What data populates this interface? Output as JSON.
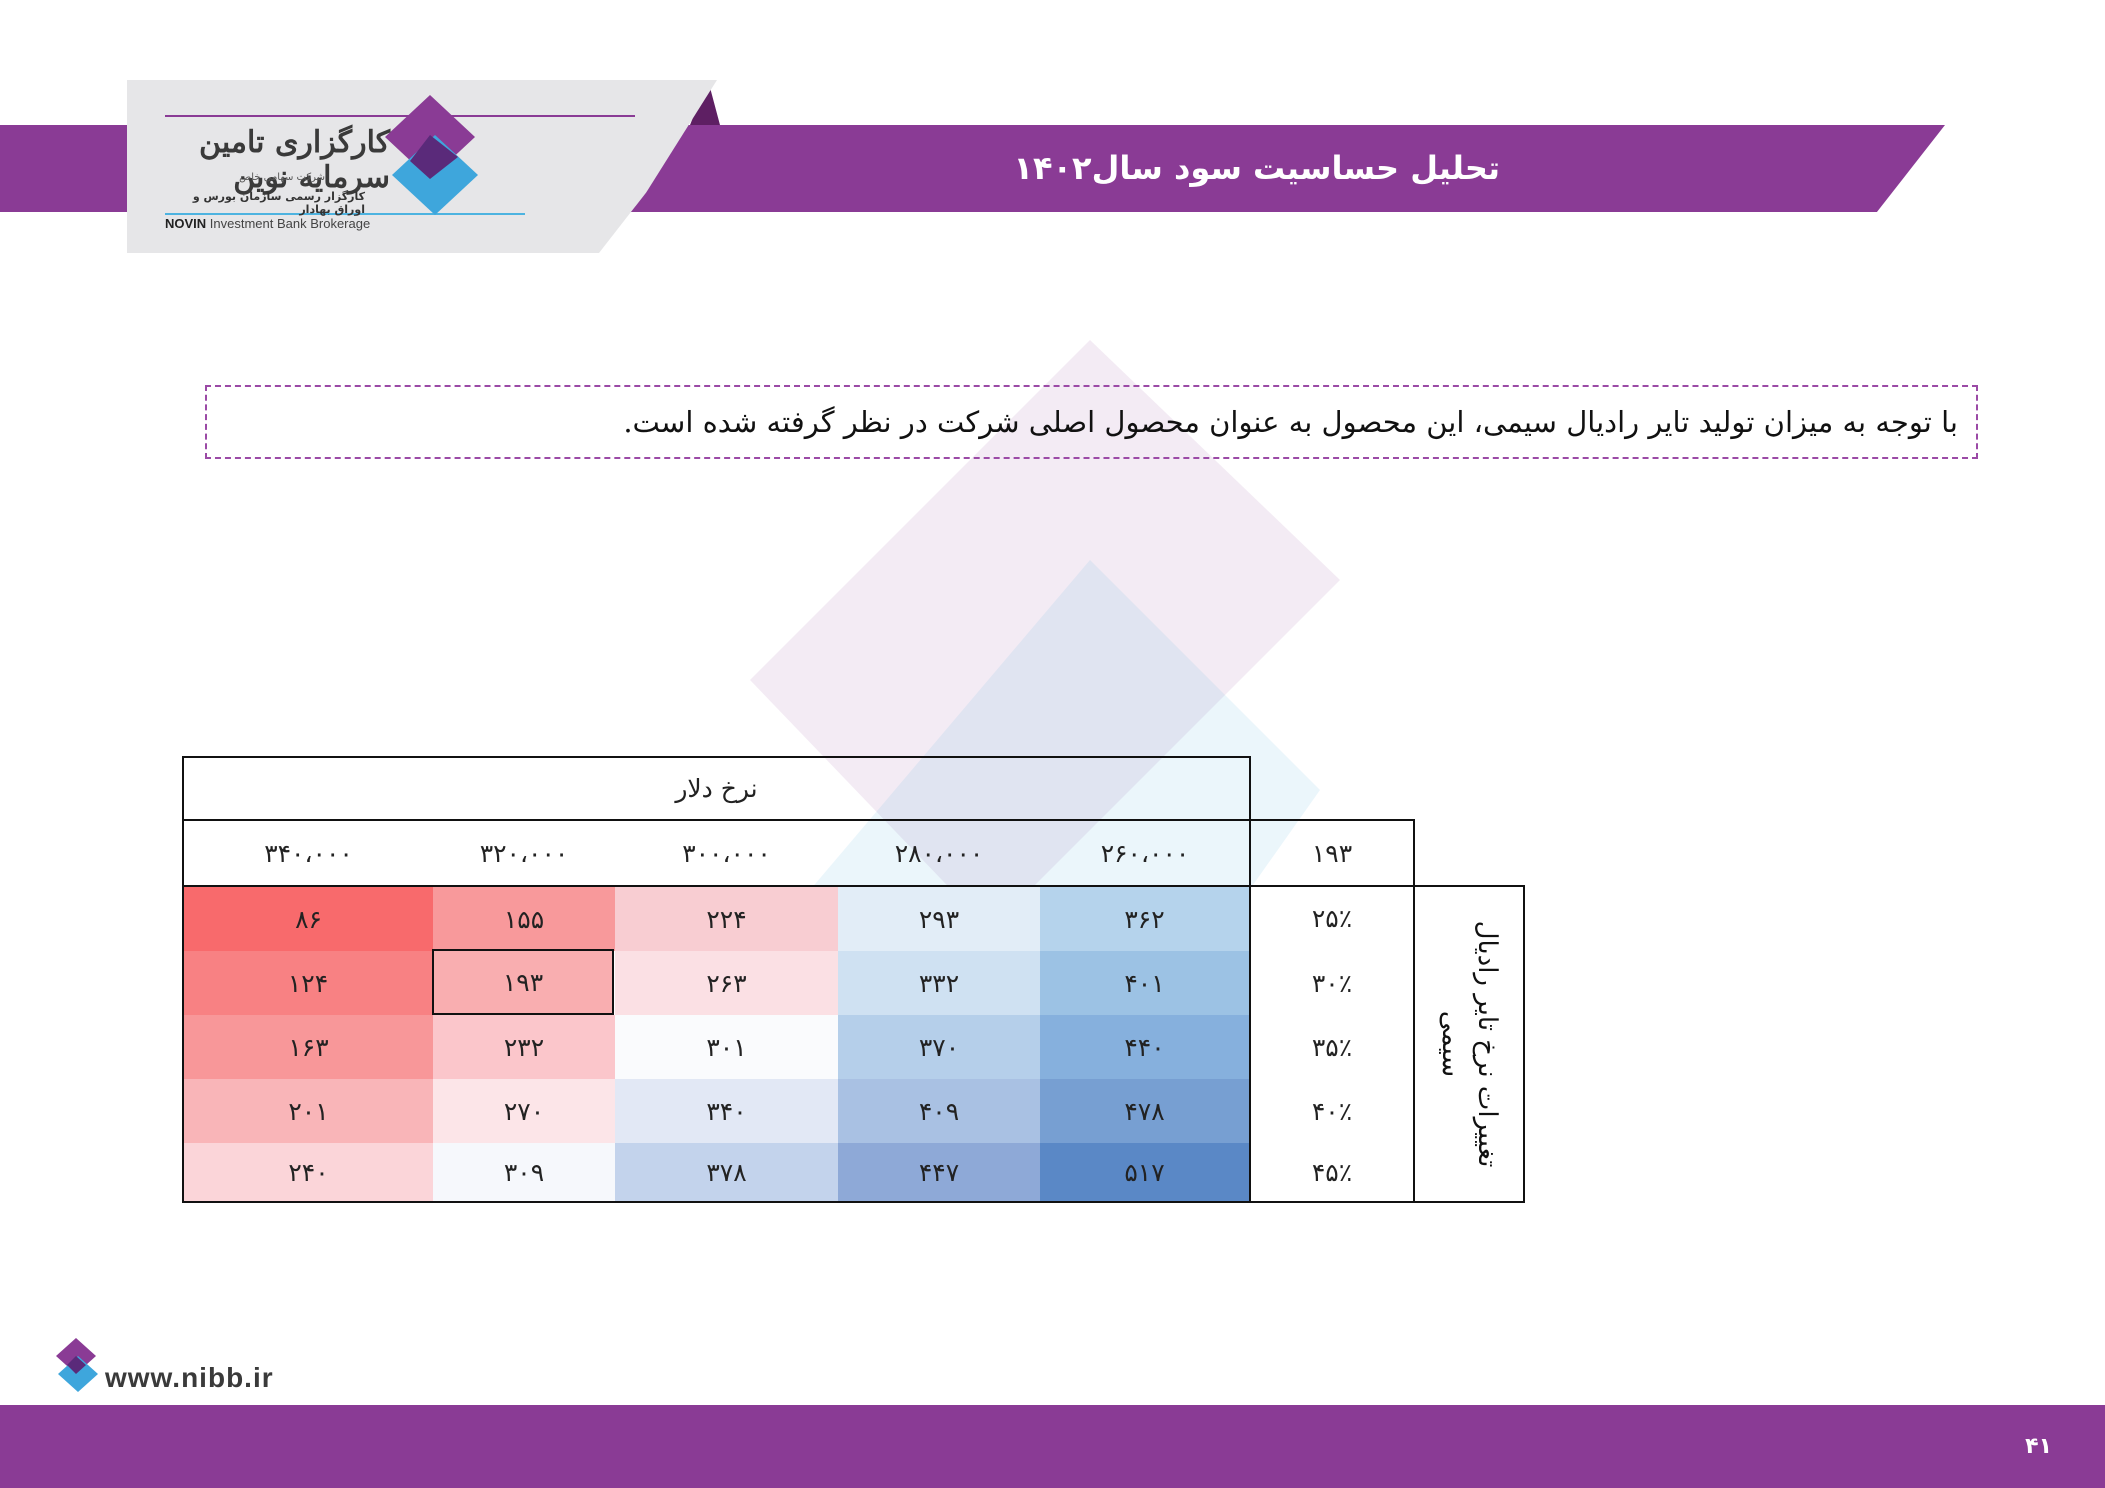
{
  "header": {
    "title": "تحلیل حساسیت سود سال۱۴۰۲"
  },
  "logo": {
    "name_fa": "کارگزاری تامین سرمایه نوین",
    "sub_fa": "شرکت سهامی خاص",
    "sub2_fa": "کارگزار رسمی سازمان بورس و اوراق بهادار",
    "name_en_bold": "NOVIN",
    "name_en_rest": " Investment Bank Brokerage"
  },
  "intro": {
    "text": "با توجه به میزان تولید تایر رادیال سیمی، این محصول به عنوان محصول اصلی شرکت در نظر گرفته شده است."
  },
  "table": {
    "col_header": "نرخ دلار",
    "corner_value": "۱۹۳",
    "row_header": "تغییرات نرخ تایر رادیال سیمی",
    "columns": [
      "۲۶۰،۰۰۰",
      "۲۸۰،۰۰۰",
      "۳۰۰،۰۰۰",
      "۳۲۰،۰۰۰",
      "۳۴۰،۰۰۰"
    ],
    "rows": [
      {
        "label": "۲۵٪",
        "values": [
          "۳۶۲",
          "۲۹۳",
          "۲۲۴",
          "۱۵۵",
          "۸۶"
        ]
      },
      {
        "label": "۳۰٪",
        "values": [
          "۴۰۱",
          "۳۳۲",
          "۲۶۳",
          "۱۹۳",
          "۱۲۴"
        ]
      },
      {
        "label": "۳۵٪",
        "values": [
          "۴۴۰",
          "۳۷۰",
          "۳۰۱",
          "۲۳۲",
          "۱۶۳"
        ]
      },
      {
        "label": "۴۰٪",
        "values": [
          "۴۷۸",
          "۴۰۹",
          "۳۴۰",
          "۲۷۰",
          "۲۰۱"
        ]
      },
      {
        "label": "۴۵٪",
        "values": [
          "۵۱۷",
          "۴۴۷",
          "۳۷۸",
          "۳۰۹",
          "۲۴۰"
        ]
      }
    ],
    "cell_colors": [
      [
        "#b5d3ec",
        "#e2edf7",
        "#f8cdd2",
        "#f8999b",
        "#f86a6c"
      ],
      [
        "#9cc2e4",
        "#cfe1f2",
        "#fbe0e4",
        "#f9aeb0",
        "#f88183"
      ],
      [
        "#86b0dd",
        "#b5cfea",
        "#fafbfd",
        "#fbc6cb",
        "#f89799"
      ],
      [
        "#779fd2",
        "#a9c1e3",
        "#e2e8f5",
        "#fce5e8",
        "#f9b5b8"
      ],
      [
        "#5a88c6",
        "#8ea9d7",
        "#c3d3ec",
        "#f6f8fc",
        "#fbd5d9"
      ]
    ],
    "selected_cell": [
      1,
      3
    ]
  },
  "footer": {
    "url": "www.nibb.ir",
    "page_number": "۴۱"
  },
  "colors": {
    "brand_purple": "#8a3b95",
    "brand_blue": "#4db3e0"
  }
}
